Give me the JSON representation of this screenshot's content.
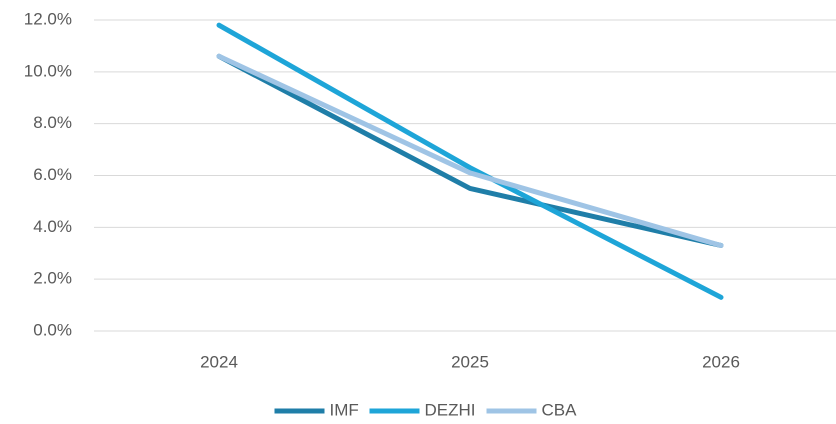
{
  "chart_data": {
    "type": "line",
    "categories": [
      "2024",
      "2025",
      "2026"
    ],
    "series": [
      {
        "name": "IMF",
        "color": "#1f7ea8",
        "values": [
          10.6,
          5.5,
          3.3
        ]
      },
      {
        "name": "DEZHI",
        "color": "#1ea5d8",
        "values": [
          11.8,
          6.3,
          1.3
        ]
      },
      {
        "name": "CBA",
        "color": "#9fc4e5",
        "values": [
          10.6,
          6.1,
          3.3
        ]
      }
    ],
    "ylim": [
      0,
      12
    ],
    "yticks": [
      {
        "value": 0,
        "label": "0.0%"
      },
      {
        "value": 2,
        "label": "2.0%"
      },
      {
        "value": 4,
        "label": "4.0%"
      },
      {
        "value": 6,
        "label": "6.0%"
      },
      {
        "value": 8,
        "label": "8.0%"
      },
      {
        "value": 10,
        "label": "10.0%"
      },
      {
        "value": 12,
        "label": "12.0%"
      }
    ],
    "grid": true,
    "legend": "bottom"
  }
}
